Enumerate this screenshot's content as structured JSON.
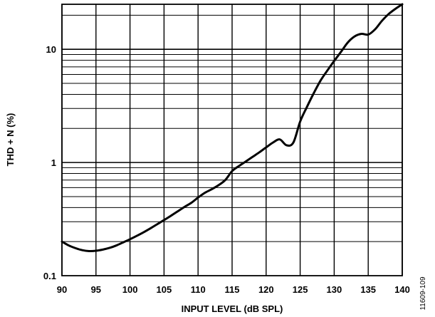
{
  "chart_data": {
    "type": "line",
    "x_axis": {
      "label": "INPUT LEVEL (dB SPL)",
      "range": [
        90,
        140
      ],
      "ticks": [
        90,
        95,
        100,
        105,
        110,
        115,
        120,
        125,
        130,
        135,
        140
      ],
      "tick_labels": [
        "90",
        "95",
        "100",
        "105",
        "110",
        "115",
        "120",
        "125",
        "130",
        "135",
        "140"
      ]
    },
    "y_axis": {
      "label": "THD + N (%)",
      "scale": "log",
      "range": [
        0.1,
        25
      ],
      "ticks": [
        0.1,
        1,
        10
      ],
      "tick_labels": [
        "0.1",
        "1",
        "10"
      ]
    },
    "grid": true,
    "figure_id": "11609-109",
    "series": [
      {
        "x": [
          90,
          91,
          92,
          93,
          94,
          95,
          96,
          97,
          98,
          99,
          100,
          101,
          102,
          103,
          104,
          105,
          106,
          107,
          108,
          109,
          110,
          111,
          112,
          113,
          114,
          115,
          116,
          117,
          118,
          119,
          120,
          121,
          122,
          123,
          124,
          125,
          126,
          127,
          128,
          129,
          130,
          131,
          132,
          133,
          134,
          135,
          136,
          137,
          138,
          139,
          140
        ],
        "values": [
          0.2,
          0.185,
          0.175,
          0.168,
          0.165,
          0.166,
          0.17,
          0.176,
          0.185,
          0.197,
          0.21,
          0.225,
          0.242,
          0.262,
          0.285,
          0.31,
          0.338,
          0.37,
          0.405,
          0.44,
          0.49,
          0.54,
          0.58,
          0.63,
          0.7,
          0.84,
          0.93,
          1.02,
          1.12,
          1.23,
          1.36,
          1.5,
          1.6,
          1.42,
          1.5,
          2.3,
          3.1,
          4.1,
          5.3,
          6.5,
          7.9,
          9.5,
          11.5,
          13.0,
          13.7,
          13.5,
          15.0,
          17.8,
          20.5,
          22.8,
          25.0
        ]
      }
    ]
  }
}
